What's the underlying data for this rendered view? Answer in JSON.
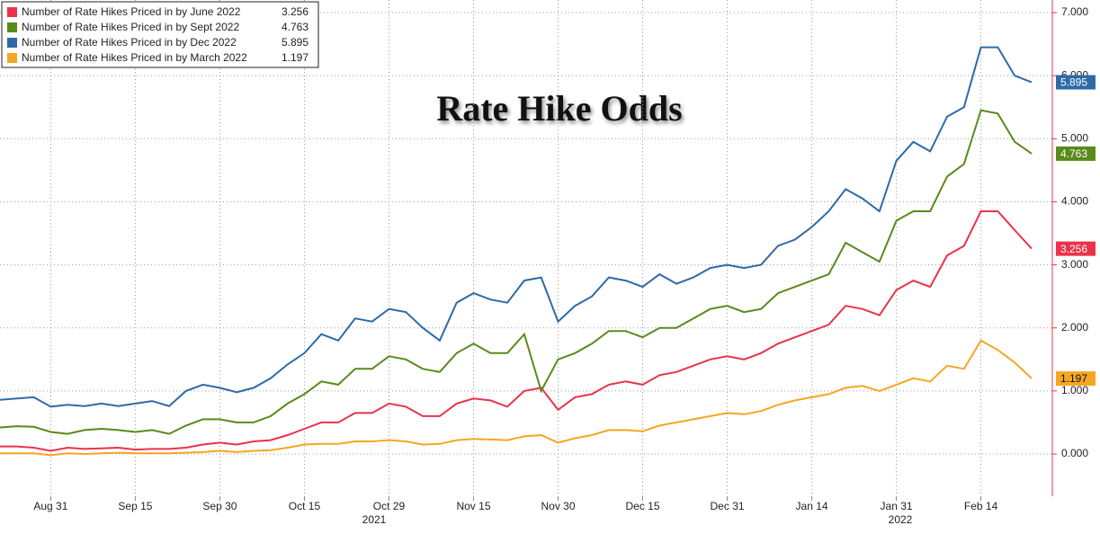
{
  "chart_data": {
    "type": "line",
    "title": "Rate Hike Odds",
    "categories": [
      null,
      null,
      null,
      "Aug 31",
      null,
      null,
      null,
      null,
      "Sep 15",
      null,
      null,
      null,
      null,
      "Sep 30",
      null,
      null,
      null,
      null,
      "Oct 15",
      null,
      null,
      null,
      null,
      "Oct 29",
      null,
      null,
      null,
      null,
      "Nov 15",
      null,
      null,
      null,
      null,
      "Nov 30",
      null,
      null,
      null,
      null,
      "Dec 15",
      null,
      null,
      null,
      null,
      "Dec 31",
      null,
      null,
      null,
      null,
      "Jan 14",
      null,
      null,
      null,
      null,
      "Jan 31",
      null,
      null,
      null,
      null,
      "Feb 14",
      null,
      null,
      null
    ],
    "year_labels": [
      "2021",
      "2022"
    ],
    "series": [
      {
        "name": "Number of Rate Hikes Priced in by June 2022",
        "color": "#e8334a",
        "values": [
          0.12,
          0.12,
          0.1,
          0.05,
          0.1,
          0.08,
          0.09,
          0.1,
          0.07,
          0.08,
          0.08,
          0.1,
          0.15,
          0.18,
          0.15,
          0.2,
          0.22,
          0.3,
          0.4,
          0.5,
          0.5,
          0.65,
          0.65,
          0.8,
          0.75,
          0.6,
          0.6,
          0.8,
          0.88,
          0.85,
          0.75,
          1.0,
          1.05,
          0.7,
          0.9,
          0.95,
          1.1,
          1.15,
          1.1,
          1.25,
          1.3,
          1.4,
          1.5,
          1.55,
          1.5,
          1.6,
          1.75,
          1.85,
          1.95,
          2.05,
          2.35,
          2.3,
          2.2,
          2.6,
          2.75,
          2.65,
          3.15,
          3.3,
          3.85,
          3.85,
          3.55,
          3.256
        ]
      },
      {
        "name": "Number of Rate Hikes Priced in by Sept 2022",
        "color": "#5a8a1a",
        "values": [
          0.42,
          0.44,
          0.43,
          0.35,
          0.32,
          0.38,
          0.4,
          0.38,
          0.35,
          0.38,
          0.32,
          0.45,
          0.55,
          0.55,
          0.5,
          0.5,
          0.6,
          0.8,
          0.95,
          1.15,
          1.1,
          1.35,
          1.35,
          1.55,
          1.5,
          1.35,
          1.3,
          1.6,
          1.75,
          1.6,
          1.6,
          1.9,
          1.0,
          1.5,
          1.6,
          1.75,
          1.95,
          1.95,
          1.85,
          2.0,
          2.0,
          2.15,
          2.3,
          2.35,
          2.25,
          2.3,
          2.55,
          2.65,
          2.75,
          2.85,
          3.35,
          3.2,
          3.05,
          3.7,
          3.85,
          3.85,
          4.4,
          4.6,
          5.45,
          5.4,
          4.95,
          4.763
        ]
      },
      {
        "name": "Number of Rate Hikes Priced in by Dec 2022",
        "color": "#2e6aa8",
        "values": [
          0.86,
          0.88,
          0.9,
          0.75,
          0.78,
          0.76,
          0.8,
          0.76,
          0.8,
          0.84,
          0.76,
          1.0,
          1.1,
          1.05,
          0.98,
          1.05,
          1.2,
          1.42,
          1.6,
          1.9,
          1.8,
          2.15,
          2.1,
          2.3,
          2.25,
          2.0,
          1.8,
          2.4,
          2.55,
          2.45,
          2.4,
          2.75,
          2.8,
          2.1,
          2.35,
          2.5,
          2.8,
          2.75,
          2.65,
          2.85,
          2.7,
          2.8,
          2.95,
          3.0,
          2.95,
          3.0,
          3.3,
          3.4,
          3.6,
          3.85,
          4.2,
          4.05,
          3.85,
          4.65,
          4.95,
          4.8,
          5.35,
          5.5,
          6.45,
          6.45,
          6.0,
          5.895
        ]
      },
      {
        "name": "Number of Rate Hikes Priced in by March 2022",
        "color": "#f5a623",
        "values": [
          0.01,
          0.01,
          0.01,
          -0.02,
          0.01,
          0.0,
          0.01,
          0.02,
          0.01,
          0.01,
          0.01,
          0.02,
          0.03,
          0.05,
          0.03,
          0.05,
          0.06,
          0.1,
          0.15,
          0.16,
          0.16,
          0.2,
          0.2,
          0.22,
          0.2,
          0.15,
          0.16,
          0.22,
          0.24,
          0.23,
          0.22,
          0.28,
          0.3,
          0.18,
          0.25,
          0.3,
          0.38,
          0.38,
          0.36,
          0.45,
          0.5,
          0.55,
          0.6,
          0.65,
          0.63,
          0.68,
          0.78,
          0.85,
          0.9,
          0.95,
          1.05,
          1.08,
          1.0,
          1.1,
          1.2,
          1.15,
          1.4,
          1.35,
          1.8,
          1.65,
          1.45,
          1.197
        ]
      }
    ],
    "ylim": [
      -0.67,
      7.2
    ],
    "yticks": [
      {
        "value": 0,
        "label": "0.000"
      },
      {
        "value": 1,
        "label": "1.000"
      },
      {
        "value": 2,
        "label": "2.000"
      },
      {
        "value": 3,
        "label": "3.000"
      },
      {
        "value": 4,
        "label": "4.000"
      },
      {
        "value": 5,
        "label": "5.000"
      },
      {
        "value": 6,
        "label": "6.000"
      },
      {
        "value": 7,
        "label": "7.000"
      }
    ],
    "grid": true,
    "legend": "upper left"
  }
}
